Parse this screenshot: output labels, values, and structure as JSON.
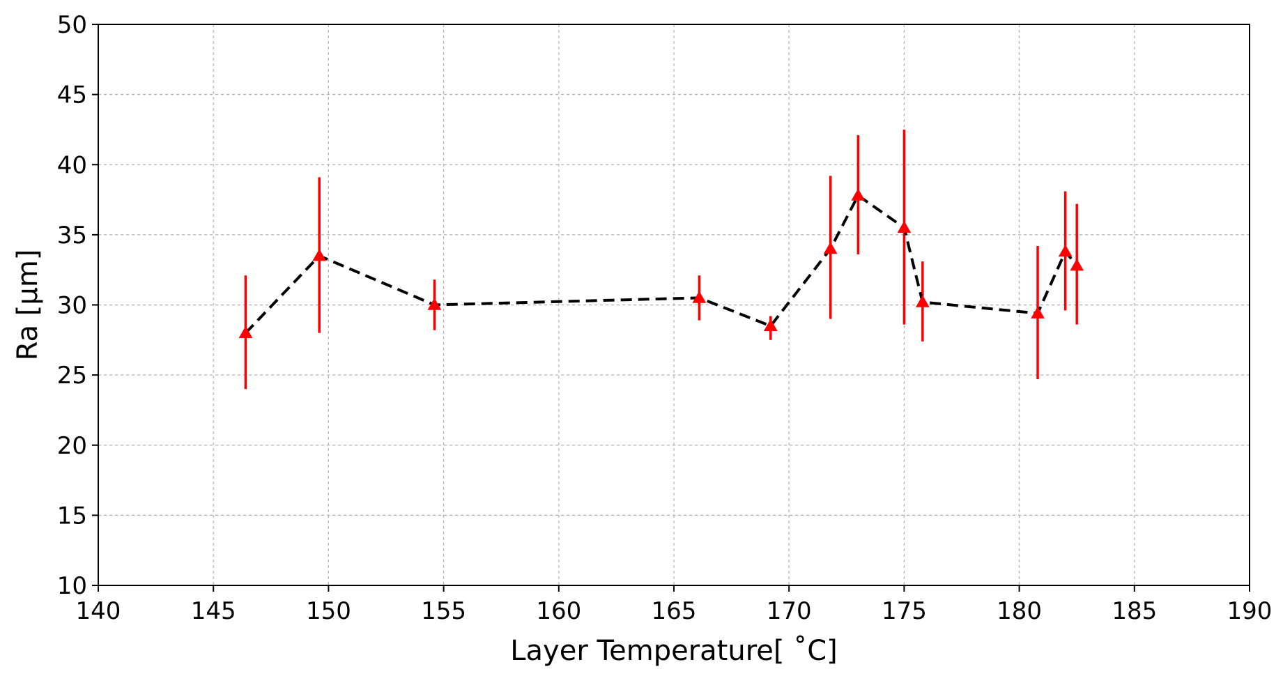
{
  "chart_data": {
    "type": "scatter",
    "title": "",
    "xlabel": "Layer Temperature[ $^\\circ$C]",
    "xlabel_display": "Layer Temperature[ ˚C]",
    "ylabel": "Ra [µm]",
    "xlim": [
      140,
      190
    ],
    "ylim": [
      10,
      50
    ],
    "xticks": [
      140,
      145,
      150,
      155,
      160,
      165,
      170,
      175,
      180,
      185,
      190
    ],
    "yticks": [
      10,
      15,
      20,
      25,
      30,
      35,
      40,
      45,
      50
    ],
    "grid": true,
    "legend": "none",
    "series": [
      {
        "marker": "triangle",
        "line_style": "dashed",
        "line_color": "#000000",
        "marker_color": "#ff0000",
        "errorbar_color": "#ff0000",
        "points": [
          {
            "x": 146.4,
            "y": 28.0,
            "err_low": 24.0,
            "err_high": 32.1
          },
          {
            "x": 149.6,
            "y": 33.5,
            "err_low": 28.0,
            "err_high": 39.1
          },
          {
            "x": 154.6,
            "y": 30.0,
            "err_low": 28.2,
            "err_high": 31.8
          },
          {
            "x": 166.1,
            "y": 30.5,
            "err_low": 28.9,
            "err_high": 32.1
          },
          {
            "x": 169.2,
            "y": 28.5,
            "err_low": 27.5,
            "err_high": 29.2
          },
          {
            "x": 171.8,
            "y": 34.0,
            "err_low": 29.0,
            "err_high": 39.2
          },
          {
            "x": 173.0,
            "y": 37.8,
            "err_low": 33.6,
            "err_high": 42.1
          },
          {
            "x": 175.0,
            "y": 35.5,
            "err_low": 28.6,
            "err_high": 42.5
          },
          {
            "x": 175.8,
            "y": 30.2,
            "err_low": 27.4,
            "err_high": 33.1
          },
          {
            "x": 180.8,
            "y": 29.4,
            "err_low": 24.7,
            "err_high": 34.2
          },
          {
            "x": 182.0,
            "y": 33.8,
            "err_low": 29.6,
            "err_high": 38.1
          },
          {
            "x": 182.5,
            "y": 32.8,
            "err_low": 28.6,
            "err_high": 37.2
          }
        ]
      }
    ]
  }
}
